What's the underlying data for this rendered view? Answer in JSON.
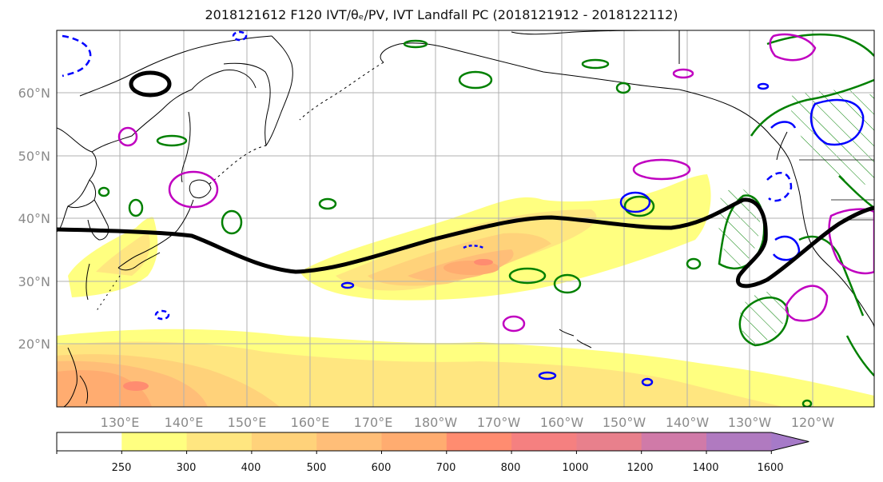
{
  "title": "2018121612 F120 IVT/θₑ/PV, IVT Landfall PC (2018121912 - 2018122112)",
  "map": {
    "lat_labels": [
      "60°N",
      "50°N",
      "40°N",
      "30°N",
      "20°N"
    ],
    "lon_labels": [
      "130°E",
      "140°E",
      "150°E",
      "160°E",
      "170°E",
      "180°W",
      "170°W",
      "160°W",
      "150°W",
      "140°W",
      "130°W",
      "120°W"
    ],
    "colors": {
      "coast": "#000000",
      "grid": "#b0b0b0",
      "pv_contour": "#008000",
      "theta_cold": "#0000ff",
      "theta_warm": "#c000c0",
      "landfall_pc": "#000000"
    }
  },
  "colorbar": {
    "labels": [
      "250",
      "300",
      "400",
      "500",
      "600",
      "700",
      "800",
      "1000",
      "1200",
      "1400",
      "1600"
    ],
    "colors": [
      "#ffffff",
      "#ffff80",
      "#ffe680",
      "#ffd27a",
      "#ffbe78",
      "#ffac70",
      "#ff8c70",
      "#f58080",
      "#e8808c",
      "#d07aa8",
      "#b07ac0",
      "#a67ac8"
    ]
  }
}
